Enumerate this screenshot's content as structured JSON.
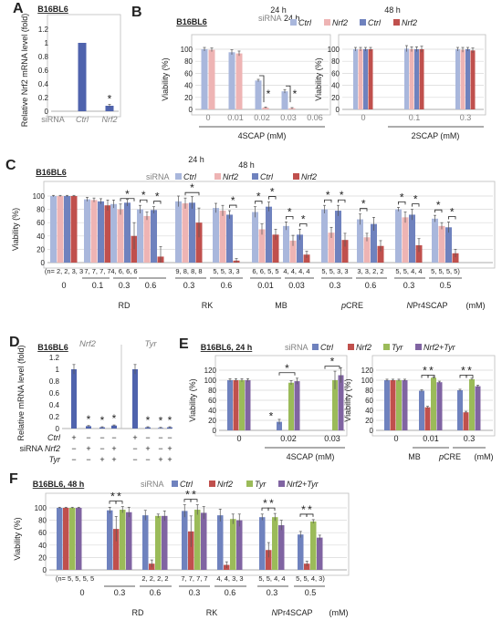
{
  "colors": {
    "ctrl": "#6f82be",
    "ctrl24": "#a9b7dc",
    "nrf2": "#c0504d",
    "nrf224": "#eeb4b4",
    "tyr": "#9bbb59",
    "nrf2tyr": "#8064a2",
    "grey": "#808080",
    "bar_single": "#4f63ad"
  },
  "common": {
    "cell_line": "B16BL6",
    "siRNA": "siRNA",
    "ctrl": "Ctrl",
    "nrf2": "Nrf2",
    "tyr": "Tyr",
    "nrf2tyr": "Nrf2+Tyr",
    "h24": "24 h",
    "h48": "48 h",
    "mM": "(mM)",
    "viability": "Viability (%)",
    "star": "*"
  },
  "panels": [
    {
      "letter": "A",
      "title": "B16BL6",
      "ylabel": "Relative Nrf2 mRNA level (fold)",
      "ylim": [
        0,
        1.2
      ],
      "yticks": [
        0,
        0.2,
        0.4,
        0.6,
        0.8,
        1,
        1.2
      ],
      "ytick_labels": [
        "0",
        "0.2",
        "0.4",
        "0.6",
        "0.8",
        "1",
        "1.2"
      ],
      "chart_data": {
        "type": "bar",
        "categories": [
          "Ctrl",
          "Nrf2"
        ],
        "values": [
          1.0,
          0.08
        ],
        "errors": [
          0.0,
          0.02
        ],
        "significant": [
          false,
          true
        ]
      }
    },
    {
      "letter": "B",
      "title": "B16BL6",
      "ylabel": "Viability (%)",
      "ylim": [
        0,
        100
      ],
      "yticks": [
        0,
        20,
        40,
        60,
        80,
        100
      ],
      "chart_data": [
        {
          "type": "bar",
          "drug": "4SCAP",
          "unit": "(mM)",
          "categories": [
            "0",
            "0.01",
            "0.02",
            "0.03",
            "0.06"
          ],
          "series": [
            {
              "name": "Ctrl",
              "time": "24 h",
              "values": [
                100,
                95,
                48,
                30,
                0
              ],
              "errors": [
                3,
                4,
                2,
                3,
                0
              ]
            },
            {
              "name": "Nrf2",
              "time": "24 h",
              "values": [
                99,
                93,
                3,
                2,
                0
              ],
              "errors": [
                3,
                4,
                1,
                1,
                0
              ]
            }
          ],
          "stars": [
            "0.02",
            "0.03"
          ]
        },
        {
          "type": "bar",
          "drug": "2SCAP",
          "unit": "(mM)",
          "categories": [
            "0",
            "0.1",
            "0.3"
          ],
          "series": [
            {
              "name": "Ctrl",
              "time": "24 h",
              "values": [
                100,
                101,
                100
              ],
              "errors": [
                3,
                5,
                3
              ]
            },
            {
              "name": "Nrf2",
              "time": "24 h",
              "values": [
                100,
                100,
                99
              ],
              "errors": [
                3,
                4,
                4
              ]
            },
            {
              "name": "Ctrl",
              "time": "48 h",
              "values": [
                100,
                100,
                100
              ],
              "errors": [
                3,
                4,
                3
              ]
            },
            {
              "name": "Nrf2",
              "time": "48 h",
              "values": [
                100,
                100,
                98
              ],
              "errors": [
                3,
                5,
                4
              ]
            }
          ]
        }
      ]
    },
    {
      "letter": "C",
      "title": "B16BL6",
      "ylabel": "Viability (%)",
      "ylim": [
        0,
        100
      ],
      "yticks": [
        0,
        20,
        40,
        60,
        80,
        100
      ],
      "chart_data": {
        "type": "bar",
        "groups": [
          {
            "drug": "",
            "conc": "0",
            "n": "(n= 2, 2, 3, 3",
            "values": [
              100,
              100,
              100,
              100
            ],
            "errors": [
              1,
              1,
              1,
              1
            ],
            "stars": []
          },
          {
            "drug": "RD",
            "conc": "0.1",
            "n": "7, 7, 7, 7",
            "values": [
              95,
              94,
              92,
              86
            ],
            "errors": [
              3,
              3,
              4,
              8
            ],
            "stars": []
          },
          {
            "drug": "RD",
            "conc": "0.3",
            "n": "4, 6, 6, 6",
            "values": [
              88,
              80,
              90,
              40
            ],
            "errors": [
              6,
              8,
              5,
              20
            ],
            "stars": [
              [
                1,
                3
              ]
            ]
          },
          {
            "drug": "RD",
            "conc": "0.6",
            "n": "",
            "values": [
              80,
              70,
              79,
              9
            ],
            "errors": [
              6,
              6,
              5,
              15
            ],
            "stars": [
              [
                0,
                1
              ],
              [
                2,
                3
              ]
            ]
          },
          {
            "drug": "RK",
            "conc": "0.3",
            "n": "9, 8, 8, 8",
            "values": [
              92,
              89,
              90,
              60
            ],
            "errors": [
              8,
              8,
              9,
              22
            ],
            "stars": [
              [
                1,
                3
              ]
            ]
          },
          {
            "drug": "RK",
            "conc": "0.6",
            "n": "5, 5, 3, 3",
            "values": [
              82,
              78,
              72,
              3
            ],
            "errors": [
              7,
              8,
              6,
              3
            ],
            "stars": [
              [
                2,
                3
              ]
            ]
          },
          {
            "drug": "MB",
            "conc": "0.01",
            "n": "6, 6, 5, 5",
            "values": [
              76,
              50,
              84,
              42
            ],
            "errors": [
              8,
              8,
              7,
              8
            ],
            "stars": [
              [
                0,
                1
              ],
              [
                2,
                3
              ]
            ]
          },
          {
            "drug": "MB",
            "conc": "0.03",
            "n": "4, 4, 4, 4",
            "values": [
              55,
              33,
              42,
              12
            ],
            "errors": [
              6,
              8,
              8,
              5
            ],
            "stars": [
              [
                0,
                1
              ],
              [
                2,
                3
              ]
            ]
          },
          {
            "drug": "pCRE",
            "conc": "0.3",
            "n": "5, 5, 3, 3",
            "values": [
              80,
              45,
              78,
              34
            ],
            "errors": [
              6,
              8,
              8,
              10
            ],
            "stars": [
              [
                0,
                1
              ],
              [
                2,
                3
              ]
            ]
          },
          {
            "drug": "pCRE",
            "conc": "0.6",
            "n": "3, 3, 2, 2",
            "values": [
              65,
              38,
              58,
              25
            ],
            "errors": [
              8,
              6,
              10,
              8
            ],
            "stars": [
              [
                0,
                1
              ]
            ]
          },
          {
            "drug": "NPr4SCAP",
            "conc": "0.3",
            "n": "5, 5, 4, 4",
            "values": [
              80,
              68,
              72,
              26
            ],
            "errors": [
              3,
              8,
              8,
              10
            ],
            "stars": [
              [
                0,
                1
              ],
              [
                2,
                3
              ]
            ]
          },
          {
            "drug": "NPr4SCAP",
            "conc": "0.5",
            "n": "5, 5, 5, 5)",
            "values": [
              66,
              55,
              53,
              14
            ],
            "errors": [
              5,
              5,
              8,
              6
            ],
            "stars": [
              [
                0,
                1
              ],
              [
                2,
                3
              ]
            ]
          }
        ],
        "series": [
          "Ctrl 24 h",
          "Nrf2 24 h",
          "Ctrl 48 h",
          "Nrf2 48 h"
        ],
        "drug_labels": [
          "RD",
          "RK",
          "MB",
          "pCRE",
          "NPr4SCAP"
        ]
      }
    },
    {
      "letter": "D",
      "title": "B16BL6",
      "ylabel": "Relative mRNA level (fold)",
      "ylim": [
        0,
        1.2
      ],
      "yticks": [
        0,
        0.2,
        0.4,
        0.6,
        0.8,
        1,
        1.2
      ],
      "ytick_labels": [
        "0",
        "0.2",
        "0.4",
        "0.6",
        "0.8",
        "1",
        "1.2"
      ],
      "chart_data": {
        "type": "bar",
        "genes": [
          "Nrf2",
          "Tyr"
        ],
        "values": [
          1.0,
          0.04,
          0.02,
          0.05,
          1.0,
          0.02,
          0.01,
          0.02
        ],
        "errors": [
          0.08,
          0.01,
          0.01,
          0.01,
          0.08,
          0.01,
          0.01,
          0.01
        ],
        "stars": [
          1,
          2,
          3,
          5,
          6,
          7
        ],
        "rows": [
          {
            "label": "Ctrl",
            "marks": [
              "+",
              "−",
              "−",
              "−"
            ]
          },
          {
            "label": "siRNA Nrf2",
            "marks": [
              "−",
              "+",
              "−",
              "+"
            ]
          },
          {
            "label": "Tyr",
            "marks": [
              "−",
              "−",
              "+",
              "+"
            ]
          }
        ]
      }
    },
    {
      "letter": "E",
      "title": "B16BL6, 24 h",
      "ylabel": "Viability (%)",
      "ylim": [
        0,
        120
      ],
      "yticks": [
        0,
        20,
        40,
        60,
        80,
        100,
        120
      ],
      "chart_data": [
        {
          "type": "bar",
          "drug": "4SCAP",
          "unit": "(mM)",
          "categories": [
            "0",
            "0.02",
            "0.03"
          ],
          "series": [
            {
              "name": "Ctrl",
              "values": [
                100,
                17,
                0
              ],
              "errors": [
                3,
                5,
                0
              ]
            },
            {
              "name": "Nrf2",
              "values": [
                100,
                0,
                0
              ],
              "errors": [
                3,
                0,
                0
              ]
            },
            {
              "name": "Tyr",
              "values": [
                100,
                95,
                100
              ],
              "errors": [
                3,
                4,
                18
              ]
            },
            {
              "name": "Nrf2+Tyr",
              "values": [
                100,
                98,
                110
              ],
              "errors": [
                3,
                6,
                15
              ]
            }
          ]
        },
        {
          "type": "bar",
          "drug_labels": [
            "MB",
            "pCRE"
          ],
          "unit": "(mM)",
          "categories": [
            "0",
            "0.01",
            "0.3"
          ],
          "series": [
            {
              "name": "Ctrl",
              "values": [
                100,
                79,
                80
              ],
              "errors": [
                2,
                2,
                2
              ]
            },
            {
              "name": "Nrf2",
              "values": [
                100,
                46,
                36
              ],
              "errors": [
                2,
                2,
                2
              ]
            },
            {
              "name": "Tyr",
              "values": [
                100,
                105,
                102
              ],
              "errors": [
                2,
                2,
                2
              ]
            },
            {
              "name": "Nrf2+Tyr",
              "values": [
                100,
                96,
                88
              ],
              "errors": [
                2,
                2,
                2
              ]
            }
          ]
        }
      ]
    },
    {
      "letter": "F",
      "title": "B16BL6, 48 h",
      "ylabel": "Viability (%)",
      "ylim": [
        0,
        100
      ],
      "yticks": [
        0,
        20,
        40,
        60,
        80,
        100
      ],
      "chart_data": {
        "type": "bar",
        "series": [
          "Ctrl",
          "Nrf2",
          "Tyr",
          "Nrf2+Tyr"
        ],
        "groups": [
          {
            "drug": "",
            "conc": "0",
            "n": "(n= 5, 5, 5, 5",
            "values": [
              100,
              100,
              100,
              100
            ],
            "errors": [
              1,
              1,
              1,
              1
            ]
          },
          {
            "drug": "RD",
            "conc": "0.3",
            "n": "",
            "values": [
              96,
              66,
              97,
              93
            ],
            "errors": [
              5,
              20,
              5,
              8
            ]
          },
          {
            "drug": "RD",
            "conc": "0.6",
            "n": "2, 2, 2, 2",
            "values": [
              88,
              10,
              87,
              87
            ],
            "errors": [
              8,
              6,
              3,
              8
            ]
          },
          {
            "drug": "RK",
            "conc": "0.3",
            "n": "7, 7, 7, 7",
            "values": [
              95,
              62,
              97,
              92
            ],
            "errors": [
              10,
              25,
              8,
              10
            ]
          },
          {
            "drug": "RK",
            "conc": "0.6",
            "n": "4, 4, 3, 3",
            "values": [
              88,
              8,
              82,
              80
            ],
            "errors": [
              10,
              5,
              8,
              10
            ]
          },
          {
            "drug": "NPr4SCAP",
            "conc": "0.3",
            "n": "5, 5, 4, 4",
            "values": [
              85,
              32,
              85,
              72
            ],
            "errors": [
              5,
              12,
              6,
              8
            ]
          },
          {
            "drug": "NPr4SCAP",
            "conc": "0.5",
            "n": "5, 5, 4, 3)",
            "values": [
              57,
              10,
              78,
              52
            ],
            "errors": [
              5,
              4,
              3,
              4
            ]
          }
        ],
        "star_groups": [
          1,
          3,
          5,
          6
        ],
        "drug_labels": [
          "RD",
          "RK",
          "NPr4SCAP"
        ]
      }
    }
  ]
}
